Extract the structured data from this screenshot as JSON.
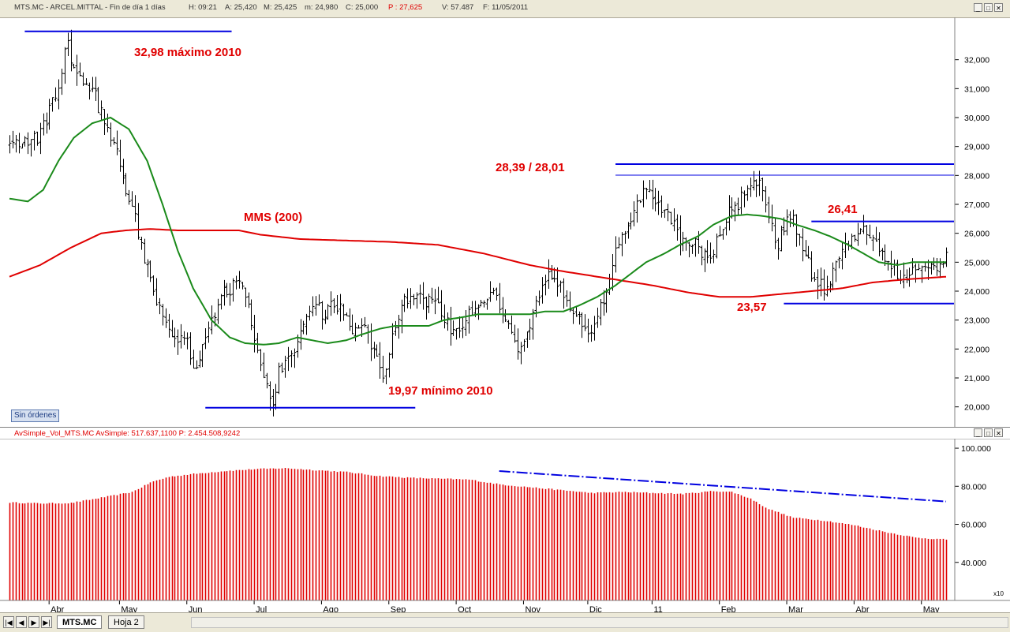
{
  "header": {
    "symbol": "MTS.MC - ARCEL.MITTAL - Fin de día 1 días",
    "h": "H: 09:21",
    "a": "A: 25,420",
    "m": "M: 25,425",
    "mn": "m: 24,980",
    "c": "C: 25,000",
    "p": "P : 27,625",
    "v": "V: 57.487",
    "f": "F: 11/05/2011"
  },
  "window_buttons": {
    "minimize": "_",
    "restore": "□",
    "close": "✕"
  },
  "sub_panel": {
    "title": "AvSimple_Vol_MTS.MC  AvSimple: 517.637,1100  P: 2.454.508,9242"
  },
  "badge": "Sin órdenes",
  "scale_marker": "x10",
  "tabs": {
    "active": "MTS.MC",
    "other": "Hoja 2",
    "nav": [
      "|◀",
      "◀",
      "▶",
      "▶|"
    ]
  },
  "chart_data": [
    {
      "type": "ohlc",
      "title": "MTS.MC - ARCEL.MITTAL",
      "ylim": [
        19.5,
        33.3
      ],
      "yticks": [
        "20,000",
        "21,000",
        "22,000",
        "23,000",
        "24,000",
        "25,000",
        "26,000",
        "27,000",
        "28,000",
        "29,000",
        "30,000",
        "31,000",
        "32,000"
      ],
      "ytick_values": [
        20,
        21,
        22,
        23,
        24,
        25,
        26,
        27,
        28,
        29,
        30,
        31,
        32
      ],
      "months": [
        "Abr",
        "May",
        "Jun",
        "Jul",
        "Ago",
        "Sep",
        "Oct",
        "Nov",
        "Dic",
        "11",
        "Feb",
        "Mar",
        "Abr",
        "May"
      ],
      "month_day_index": [
        15,
        38,
        60,
        82,
        104,
        126,
        148,
        170,
        191,
        212,
        234,
        256,
        278,
        300
      ],
      "n_days": 307,
      "price_anchors": [
        [
          0,
          29.0
        ],
        [
          5,
          29.2
        ],
        [
          10,
          29.4
        ],
        [
          15,
          30.8
        ],
        [
          19,
          32.6
        ],
        [
          21,
          31.6
        ],
        [
          27,
          31.0
        ],
        [
          31,
          29.8
        ],
        [
          35,
          29.1
        ],
        [
          38,
          27.2
        ],
        [
          41,
          26.5
        ],
        [
          43,
          25.6
        ],
        [
          46,
          24.3
        ],
        [
          50,
          23.0
        ],
        [
          53,
          22.2
        ],
        [
          57,
          22.6
        ],
        [
          61,
          21.2
        ],
        [
          63,
          22.3
        ],
        [
          66,
          23.1
        ],
        [
          70,
          24.0
        ],
        [
          74,
          24.2
        ],
        [
          77,
          23.9
        ],
        [
          81,
          22.0
        ],
        [
          84,
          20.6
        ],
        [
          86,
          20.2
        ],
        [
          88,
          21.2
        ],
        [
          92,
          21.6
        ],
        [
          95,
          22.6
        ],
        [
          99,
          23.5
        ],
        [
          103,
          23.2
        ],
        [
          106,
          23.6
        ],
        [
          109,
          23.4
        ],
        [
          112,
          22.6
        ],
        [
          115,
          23.0
        ],
        [
          119,
          21.8
        ],
        [
          122,
          21.0
        ],
        [
          125,
          22.4
        ],
        [
          129,
          23.7
        ],
        [
          133,
          23.8
        ],
        [
          137,
          23.6
        ],
        [
          141,
          23.3
        ],
        [
          145,
          22.6
        ],
        [
          149,
          23.0
        ],
        [
          153,
          23.6
        ],
        [
          157,
          23.9
        ],
        [
          160,
          23.5
        ],
        [
          163,
          22.8
        ],
        [
          167,
          21.9
        ],
        [
          170,
          22.7
        ],
        [
          173,
          23.8
        ],
        [
          176,
          24.6
        ],
        [
          180,
          24.1
        ],
        [
          184,
          23.3
        ],
        [
          187,
          23.0
        ],
        [
          189,
          22.4
        ],
        [
          192,
          23.2
        ],
        [
          195,
          24.1
        ],
        [
          198,
          25.4
        ],
        [
          201,
          26.1
        ],
        [
          205,
          27.1
        ],
        [
          208,
          27.7
        ],
        [
          211,
          26.9
        ],
        [
          215,
          26.8
        ],
        [
          219,
          25.6
        ],
        [
          222,
          25.8
        ],
        [
          227,
          25.2
        ],
        [
          230,
          25.4
        ],
        [
          234,
          26.6
        ],
        [
          238,
          27.0
        ],
        [
          242,
          27.7
        ],
        [
          245,
          27.7
        ],
        [
          248,
          26.3
        ],
        [
          251,
          25.7
        ],
        [
          255,
          26.7
        ],
        [
          259,
          25.6
        ],
        [
          262,
          24.6
        ],
        [
          266,
          24.1
        ],
        [
          269,
          24.6
        ],
        [
          273,
          25.4
        ],
        [
          277,
          26.1
        ],
        [
          281,
          26.0
        ],
        [
          284,
          25.6
        ],
        [
          288,
          24.8
        ],
        [
          292,
          24.5
        ],
        [
          295,
          24.8
        ],
        [
          299,
          24.9
        ],
        [
          303,
          24.6
        ],
        [
          306,
          25.2
        ]
      ],
      "mma_short_anchors": [
        [
          0,
          27.2
        ],
        [
          6,
          27.1
        ],
        [
          11,
          27.5
        ],
        [
          16,
          28.5
        ],
        [
          21,
          29.3
        ],
        [
          27,
          29.8
        ],
        [
          33,
          30.0
        ],
        [
          39,
          29.6
        ],
        [
          45,
          28.5
        ],
        [
          50,
          27.0
        ],
        [
          55,
          25.4
        ],
        [
          60,
          24.1
        ],
        [
          66,
          23.0
        ],
        [
          72,
          22.4
        ],
        [
          77,
          22.2
        ],
        [
          83,
          22.15
        ],
        [
          88,
          22.2
        ],
        [
          94,
          22.4
        ],
        [
          99,
          22.3
        ],
        [
          104,
          22.2
        ],
        [
          110,
          22.3
        ],
        [
          115,
          22.5
        ],
        [
          121,
          22.7
        ],
        [
          126,
          22.8
        ],
        [
          132,
          22.8
        ],
        [
          137,
          22.8
        ],
        [
          142,
          23.0
        ],
        [
          148,
          23.1
        ],
        [
          153,
          23.2
        ],
        [
          159,
          23.2
        ],
        [
          164,
          23.2
        ],
        [
          170,
          23.2
        ],
        [
          175,
          23.3
        ],
        [
          181,
          23.3
        ],
        [
          186,
          23.5
        ],
        [
          192,
          23.8
        ],
        [
          198,
          24.2
        ],
        [
          203,
          24.6
        ],
        [
          208,
          25.0
        ],
        [
          214,
          25.3
        ],
        [
          219,
          25.6
        ],
        [
          225,
          25.9
        ],
        [
          230,
          26.3
        ],
        [
          236,
          26.6
        ],
        [
          241,
          26.65
        ],
        [
          246,
          26.6
        ],
        [
          252,
          26.5
        ],
        [
          257,
          26.3
        ],
        [
          263,
          26.1
        ],
        [
          268,
          25.9
        ],
        [
          274,
          25.6
        ],
        [
          279,
          25.3
        ],
        [
          284,
          25.0
        ],
        [
          290,
          24.9
        ],
        [
          295,
          25.0
        ],
        [
          306,
          25.0
        ]
      ],
      "mms200_anchors": [
        [
          0,
          24.5
        ],
        [
          10,
          24.9
        ],
        [
          20,
          25.5
        ],
        [
          30,
          26.0
        ],
        [
          38,
          26.1
        ],
        [
          46,
          26.15
        ],
        [
          55,
          26.1
        ],
        [
          65,
          26.1
        ],
        [
          75,
          26.1
        ],
        [
          82,
          25.95
        ],
        [
          95,
          25.8
        ],
        [
          110,
          25.75
        ],
        [
          125,
          25.7
        ],
        [
          140,
          25.6
        ],
        [
          155,
          25.3
        ],
        [
          170,
          24.9
        ],
        [
          180,
          24.7
        ],
        [
          195,
          24.45
        ],
        [
          210,
          24.2
        ],
        [
          222,
          23.95
        ],
        [
          232,
          23.8
        ],
        [
          242,
          23.8
        ],
        [
          252,
          23.9
        ],
        [
          262,
          24.0
        ],
        [
          272,
          24.1
        ],
        [
          282,
          24.3
        ],
        [
          292,
          24.4
        ],
        [
          306,
          24.5
        ]
      ],
      "horizontal_levels": [
        {
          "label": "32,98 máximo 2010",
          "value": 32.98,
          "x_from_day": 5,
          "x_to_day": 70
        },
        {
          "label": "19,97 mínimo 2010",
          "value": 19.97,
          "x_from_day": 64,
          "x_to_day": 130
        },
        {
          "label": "28,39 / 28,01",
          "value": 28.39,
          "x_from_day": 198,
          "x_to_day": 306
        },
        {
          "label": "",
          "value": 28.01,
          "x_from_day": 198,
          "x_to_day": 306
        },
        {
          "label": "26,41",
          "value": 26.41,
          "x_from_day": 262,
          "x_to_day": 306
        },
        {
          "label": "23,57",
          "value": 23.57,
          "x_from_day": 253,
          "x_to_day": 306
        }
      ],
      "labels": {
        "max": "32,98 máximo 2010",
        "min": "19,97 mínimo 2010",
        "resistance": "28,39 / 28,01",
        "mms": "MMS (200)",
        "level_2641": "26,41",
        "level_2357": "23,57"
      },
      "colors": {
        "bars": "#000000",
        "mma_short": "#1a8a1a",
        "mms200": "#e00000",
        "levels": "#0000e0",
        "annotation": "#e00000"
      }
    },
    {
      "type": "bar",
      "title": "AvSimple_Vol_MTS.MC",
      "ylim": [
        20000,
        105000
      ],
      "yticks": [
        "40.000",
        "60.000",
        "80.000",
        "100.000"
      ],
      "ytick_values": [
        40000,
        60000,
        80000,
        100000
      ],
      "volume_anchors": [
        [
          0,
          71500
        ],
        [
          10,
          71000
        ],
        [
          20,
          71200
        ],
        [
          30,
          74000
        ],
        [
          40,
          77000
        ],
        [
          46,
          82000
        ],
        [
          52,
          85000
        ],
        [
          60,
          86500
        ],
        [
          70,
          88000
        ],
        [
          80,
          89000
        ],
        [
          90,
          89500
        ],
        [
          100,
          88500
        ],
        [
          110,
          87500
        ],
        [
          120,
          85500
        ],
        [
          130,
          84500
        ],
        [
          140,
          84000
        ],
        [
          150,
          83500
        ],
        [
          160,
          81000
        ],
        [
          170,
          79500
        ],
        [
          180,
          78000
        ],
        [
          190,
          76500
        ],
        [
          200,
          77000
        ],
        [
          210,
          76500
        ],
        [
          220,
          76000
        ],
        [
          230,
          77500
        ],
        [
          236,
          77000
        ],
        [
          242,
          73500
        ],
        [
          248,
          68000
        ],
        [
          256,
          63500
        ],
        [
          266,
          62000
        ],
        [
          276,
          59500
        ],
        [
          286,
          56000
        ],
        [
          296,
          53000
        ],
        [
          306,
          52000
        ]
      ],
      "trendline": [
        [
          160,
          88000
        ],
        [
          306,
          72000
        ]
      ],
      "colors": {
        "bars": "#e00000",
        "trend": "#0000e0"
      }
    }
  ]
}
